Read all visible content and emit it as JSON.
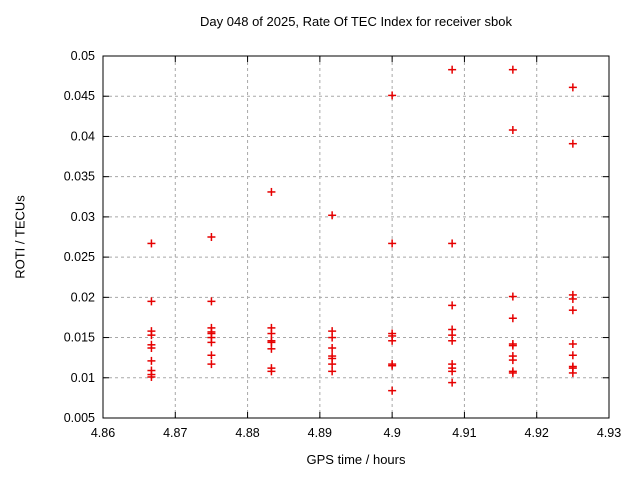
{
  "chart_data": {
    "type": "scatter",
    "title": "Day 048 of 2025, Rate Of TEC Index for receiver sbok",
    "xlabel": "GPS time / hours",
    "ylabel": "ROTI / TECUs",
    "xlim": [
      4.86,
      4.93
    ],
    "ylim": [
      0.005,
      0.05
    ],
    "x_tick_labels": [
      "4.86",
      "4.87",
      "4.88",
      "4.89",
      "4.9",
      "4.91",
      "4.92",
      "4.93"
    ],
    "x_ticks": [
      4.86,
      4.87,
      4.88,
      4.89,
      4.9,
      4.91,
      4.92,
      4.93
    ],
    "y_tick_labels": [
      "0.005",
      "0.01",
      "0.015",
      "0.02",
      "0.025",
      "0.03",
      "0.035",
      "0.04",
      "0.045",
      "0.05"
    ],
    "y_ticks": [
      0.005,
      0.01,
      0.015,
      0.02,
      0.025,
      0.03,
      0.035,
      0.04,
      0.045,
      0.05
    ],
    "grid": true,
    "legend_position": "none",
    "colors": {
      "marker": "#e60000",
      "grid": "#a8a8a8",
      "border": "#000000",
      "text": "#000000",
      "background": "#ffffff"
    },
    "marker_shape": "plus",
    "series": [
      {
        "name": "ROTI",
        "points": [
          [
            4.8667,
            0.0267
          ],
          [
            4.8667,
            0.0195
          ],
          [
            4.8667,
            0.0158
          ],
          [
            4.8667,
            0.0153
          ],
          [
            4.8667,
            0.0141
          ],
          [
            4.8667,
            0.0137
          ],
          [
            4.8667,
            0.0121
          ],
          [
            4.8667,
            0.0109
          ],
          [
            4.8667,
            0.0104
          ],
          [
            4.8667,
            0.0101
          ],
          [
            4.875,
            0.0275
          ],
          [
            4.875,
            0.0195
          ],
          [
            4.875,
            0.0162
          ],
          [
            4.875,
            0.0157
          ],
          [
            4.875,
            0.0155
          ],
          [
            4.875,
            0.015
          ],
          [
            4.875,
            0.0144
          ],
          [
            4.875,
            0.0128
          ],
          [
            4.875,
            0.0117
          ],
          [
            4.8833,
            0.0331
          ],
          [
            4.8833,
            0.0162
          ],
          [
            4.8833,
            0.0155
          ],
          [
            4.8833,
            0.0146
          ],
          [
            4.8833,
            0.0144
          ],
          [
            4.8833,
            0.0136
          ],
          [
            4.8833,
            0.0112
          ],
          [
            4.8833,
            0.0108
          ],
          [
            4.8917,
            0.0302
          ],
          [
            4.8917,
            0.0158
          ],
          [
            4.8917,
            0.015
          ],
          [
            4.8917,
            0.0137
          ],
          [
            4.8917,
            0.0127
          ],
          [
            4.8917,
            0.0124
          ],
          [
            4.8917,
            0.0117
          ],
          [
            4.8917,
            0.0108
          ],
          [
            4.9,
            0.0451
          ],
          [
            4.9,
            0.0267
          ],
          [
            4.9,
            0.0155
          ],
          [
            4.9,
            0.0152
          ],
          [
            4.9,
            0.0146
          ],
          [
            4.9,
            0.0117
          ],
          [
            4.9,
            0.0115
          ],
          [
            4.9,
            0.0084
          ],
          [
            4.9083,
            0.0483
          ],
          [
            4.9083,
            0.0267
          ],
          [
            4.9083,
            0.019
          ],
          [
            4.9083,
            0.016
          ],
          [
            4.9083,
            0.0153
          ],
          [
            4.9083,
            0.0146
          ],
          [
            4.9083,
            0.0117
          ],
          [
            4.9083,
            0.0112
          ],
          [
            4.9083,
            0.0108
          ],
          [
            4.9083,
            0.0094
          ],
          [
            4.9167,
            0.0483
          ],
          [
            4.9167,
            0.0408
          ],
          [
            4.9167,
            0.0201
          ],
          [
            4.9167,
            0.0174
          ],
          [
            4.9167,
            0.0142
          ],
          [
            4.9167,
            0.014
          ],
          [
            4.9167,
            0.0127
          ],
          [
            4.9167,
            0.0122
          ],
          [
            4.9167,
            0.0108
          ],
          [
            4.9167,
            0.0106
          ],
          [
            4.925,
            0.0461
          ],
          [
            4.925,
            0.0391
          ],
          [
            4.925,
            0.0203
          ],
          [
            4.925,
            0.0198
          ],
          [
            4.925,
            0.0184
          ],
          [
            4.925,
            0.0142
          ],
          [
            4.925,
            0.0128
          ],
          [
            4.925,
            0.0114
          ],
          [
            4.925,
            0.0112
          ],
          [
            4.925,
            0.0106
          ]
        ]
      }
    ]
  }
}
